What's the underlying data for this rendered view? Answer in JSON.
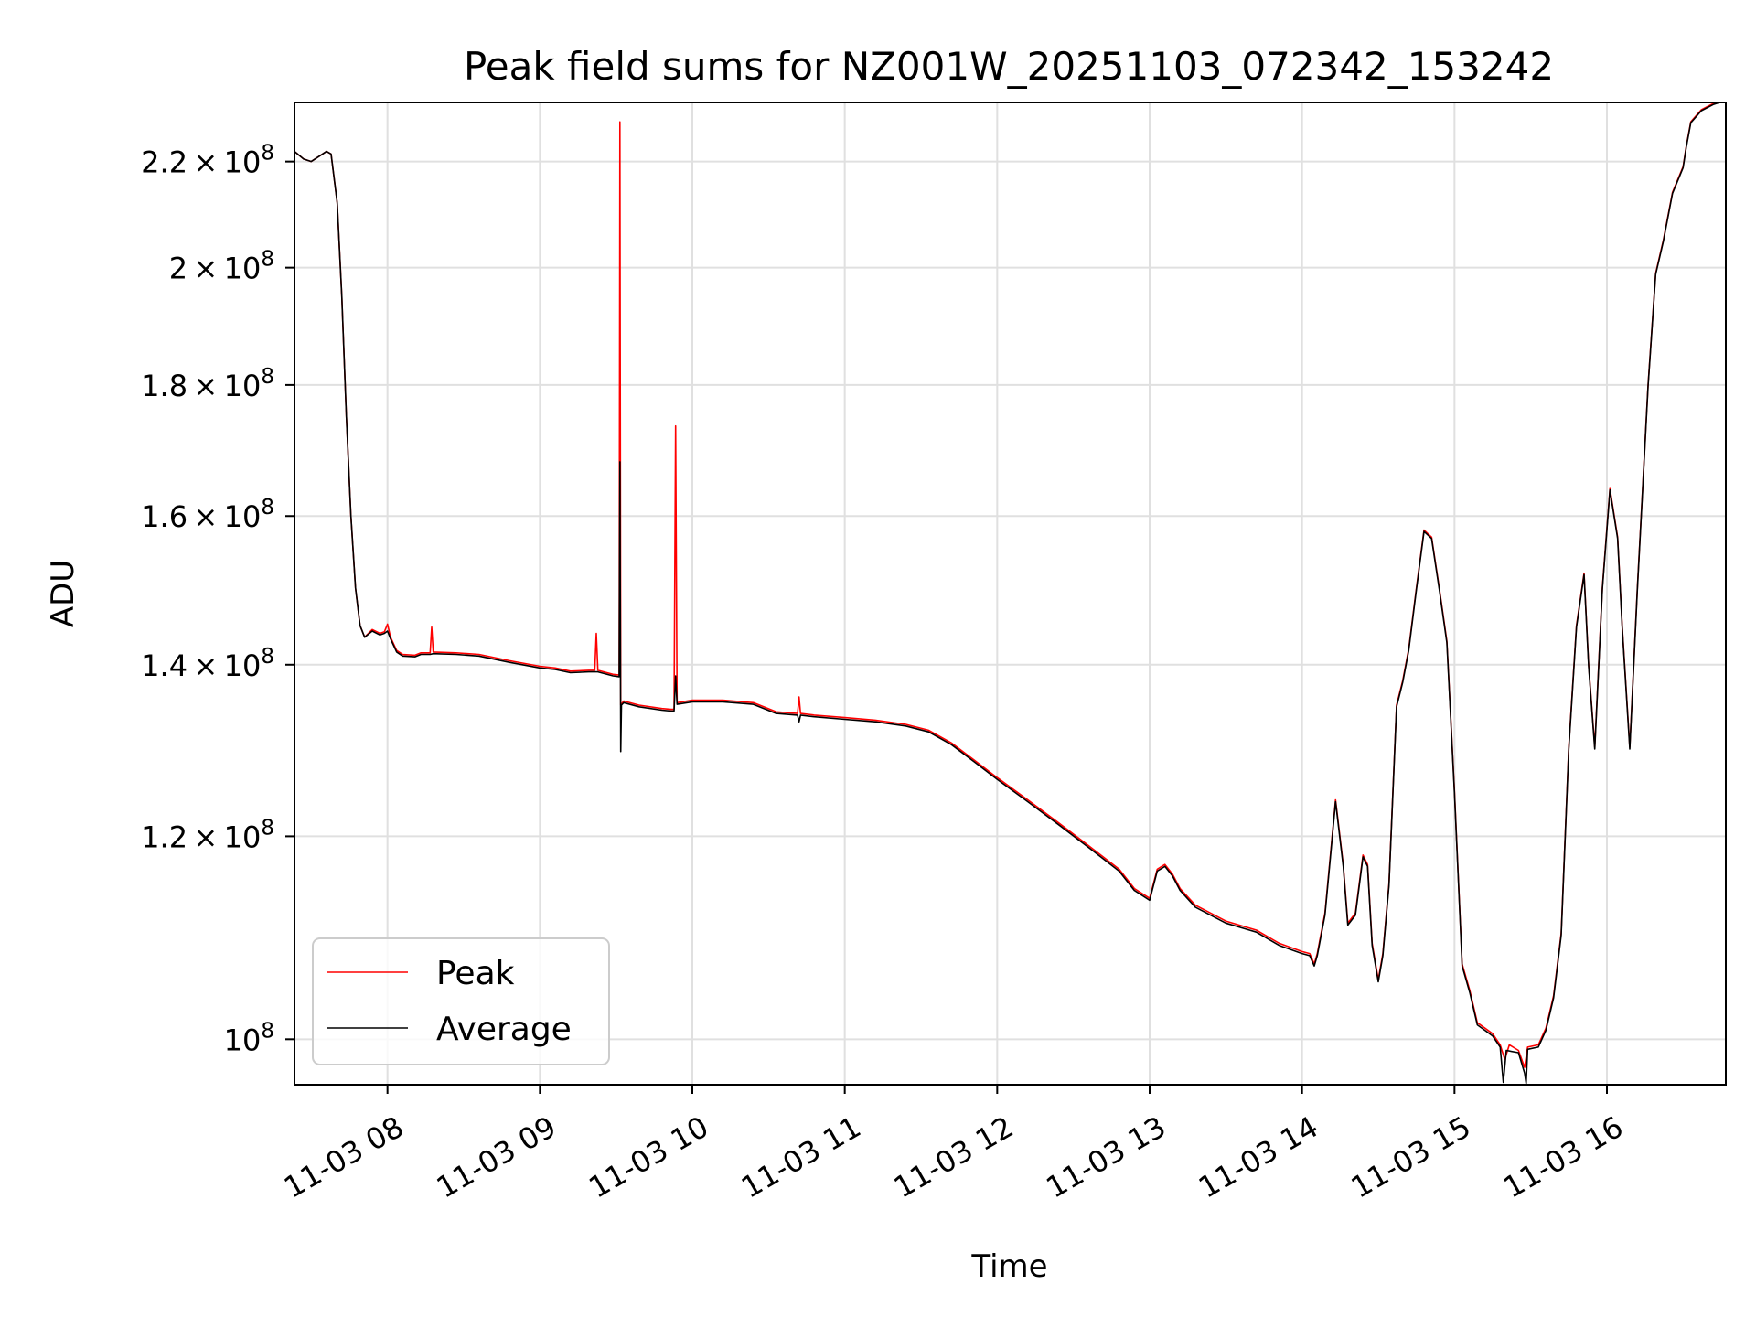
{
  "chart_data": {
    "type": "line",
    "title": "Peak field sums for NZ001W_20251103_072342_153242",
    "xlabel": "Time",
    "ylabel": "ADU",
    "yscale": "log",
    "xlim_hours": [
      7.39,
      16.78
    ],
    "ylim": [
      96000000,
      232000000
    ],
    "grid": true,
    "legend_location": "lower-left",
    "x_ticks": [
      {
        "value": 8,
        "label": "11-03 08"
      },
      {
        "value": 9,
        "label": "11-03 09"
      },
      {
        "value": 10,
        "label": "11-03 10"
      },
      {
        "value": 11,
        "label": "11-03 11"
      },
      {
        "value": 12,
        "label": "11-03 12"
      },
      {
        "value": 13,
        "label": "11-03 13"
      },
      {
        "value": 14,
        "label": "11-03 14"
      },
      {
        "value": 15,
        "label": "11-03 15"
      },
      {
        "value": 16,
        "label": "11-03 16"
      }
    ],
    "y_ticks": [
      {
        "value": 100000000,
        "mantissa": "",
        "exponent": "8"
      },
      {
        "value": 120000000,
        "mantissa": "1.2",
        "exponent": "8"
      },
      {
        "value": 140000000,
        "mantissa": "1.4",
        "exponent": "8"
      },
      {
        "value": 160000000,
        "mantissa": "1.6",
        "exponent": "8"
      },
      {
        "value": 180000000,
        "mantissa": "1.8",
        "exponent": "8"
      },
      {
        "value": 200000000,
        "mantissa": "2",
        "exponent": "8"
      },
      {
        "value": 220000000,
        "mantissa": "2.2",
        "exponent": "8"
      }
    ],
    "series": [
      {
        "name": "Peak",
        "color": "#ff0000",
        "points": [
          [
            7.39,
            222000000
          ],
          [
            7.45,
            220500000
          ],
          [
            7.5,
            220000000
          ],
          [
            7.55,
            221000000
          ],
          [
            7.6,
            222000000
          ],
          [
            7.63,
            221500000
          ],
          [
            7.67,
            212000000
          ],
          [
            7.7,
            195000000
          ],
          [
            7.73,
            175000000
          ],
          [
            7.76,
            160000000
          ],
          [
            7.79,
            150000000
          ],
          [
            7.82,
            145000000
          ],
          [
            7.85,
            143500000
          ],
          [
            7.9,
            144500000
          ],
          [
            7.95,
            144000000
          ],
          [
            7.98,
            144200000
          ],
          [
            8.0,
            145200000
          ],
          [
            8.02,
            143500000
          ],
          [
            8.06,
            141800000
          ],
          [
            8.1,
            141300000
          ],
          [
            8.18,
            141200000
          ],
          [
            8.22,
            141500000
          ],
          [
            8.28,
            141500000
          ],
          [
            8.29,
            144800000
          ],
          [
            8.3,
            141600000
          ],
          [
            8.45,
            141500000
          ],
          [
            8.6,
            141300000
          ],
          [
            8.8,
            140500000
          ],
          [
            9.0,
            139800000
          ],
          [
            9.1,
            139600000
          ],
          [
            9.2,
            139200000
          ],
          [
            9.32,
            139300000
          ],
          [
            9.36,
            139300000
          ],
          [
            9.37,
            144000000
          ],
          [
            9.38,
            139300000
          ],
          [
            9.48,
            138800000
          ],
          [
            9.52,
            138700000
          ],
          [
            9.525,
            228000000
          ],
          [
            9.53,
            135000000
          ],
          [
            9.55,
            135500000
          ],
          [
            9.65,
            135000000
          ],
          [
            9.8,
            134600000
          ],
          [
            9.86,
            134500000
          ],
          [
            9.88,
            134500000
          ],
          [
            9.89,
            173500000
          ],
          [
            9.9,
            135300000
          ],
          [
            10.0,
            135600000
          ],
          [
            10.2,
            135600000
          ],
          [
            10.4,
            135300000
          ],
          [
            10.55,
            134200000
          ],
          [
            10.69,
            134000000
          ],
          [
            10.7,
            136000000
          ],
          [
            10.71,
            134000000
          ],
          [
            10.8,
            133800000
          ],
          [
            11.0,
            133500000
          ],
          [
            11.2,
            133200000
          ],
          [
            11.4,
            132700000
          ],
          [
            11.55,
            132000000
          ],
          [
            11.7,
            130500000
          ],
          [
            11.85,
            128500000
          ],
          [
            12.0,
            126500000
          ],
          [
            12.2,
            124000000
          ],
          [
            12.4,
            121500000
          ],
          [
            12.6,
            119000000
          ],
          [
            12.8,
            116500000
          ],
          [
            12.9,
            114500000
          ],
          [
            13.0,
            113500000
          ],
          [
            13.05,
            116500000
          ],
          [
            13.1,
            117000000
          ],
          [
            13.15,
            116000000
          ],
          [
            13.2,
            114500000
          ],
          [
            13.3,
            112800000
          ],
          [
            13.5,
            111200000
          ],
          [
            13.7,
            110300000
          ],
          [
            13.85,
            109000000
          ],
          [
            14.0,
            108200000
          ],
          [
            14.05,
            108000000
          ],
          [
            14.08,
            107000000
          ],
          [
            14.1,
            108000000
          ],
          [
            14.15,
            112000000
          ],
          [
            14.18,
            117000000
          ],
          [
            14.22,
            124000000
          ],
          [
            14.27,
            117000000
          ],
          [
            14.3,
            111000000
          ],
          [
            14.35,
            112000000
          ],
          [
            14.4,
            118000000
          ],
          [
            14.43,
            117000000
          ],
          [
            14.46,
            109000000
          ],
          [
            14.5,
            105500000
          ],
          [
            14.53,
            108000000
          ],
          [
            14.57,
            115000000
          ],
          [
            14.62,
            135000000
          ],
          [
            14.66,
            138000000
          ],
          [
            14.7,
            142000000
          ],
          [
            14.75,
            150000000
          ],
          [
            14.8,
            158000000
          ],
          [
            14.85,
            157000000
          ],
          [
            14.9,
            150000000
          ],
          [
            14.95,
            143000000
          ],
          [
            15.0,
            125000000
          ],
          [
            15.05,
            107000000
          ],
          [
            15.1,
            104500000
          ],
          [
            15.15,
            101500000
          ],
          [
            15.2,
            101000000
          ],
          [
            15.25,
            100500000
          ],
          [
            15.3,
            99500000
          ],
          [
            15.33,
            98200000
          ],
          [
            15.36,
            99500000
          ],
          [
            15.42,
            99000000
          ],
          [
            15.46,
            97500000
          ],
          [
            15.48,
            99300000
          ],
          [
            15.55,
            99500000
          ],
          [
            15.6,
            101000000
          ],
          [
            15.65,
            104000000
          ],
          [
            15.7,
            110000000
          ],
          [
            15.75,
            130000000
          ],
          [
            15.8,
            145000000
          ],
          [
            15.85,
            152000000
          ],
          [
            15.88,
            140000000
          ],
          [
            15.92,
            130000000
          ],
          [
            15.97,
            150000000
          ],
          [
            16.02,
            164000000
          ],
          [
            16.07,
            157000000
          ],
          [
            16.1,
            145000000
          ],
          [
            16.15,
            130000000
          ],
          [
            16.2,
            150000000
          ],
          [
            16.27,
            180000000
          ],
          [
            16.32,
            199000000
          ],
          [
            16.37,
            205000000
          ],
          [
            16.43,
            214000000
          ],
          [
            16.5,
            219000000
          ],
          [
            16.52,
            223000000
          ],
          [
            16.55,
            228000000
          ],
          [
            16.62,
            230500000
          ],
          [
            16.7,
            231800000
          ],
          [
            16.78,
            232500000
          ]
        ]
      },
      {
        "name": "Average",
        "color": "#000000",
        "points": [
          [
            7.39,
            222000000
          ],
          [
            7.45,
            220500000
          ],
          [
            7.5,
            220000000
          ],
          [
            7.55,
            221000000
          ],
          [
            7.6,
            222000000
          ],
          [
            7.63,
            221500000
          ],
          [
            7.67,
            212000000
          ],
          [
            7.7,
            195000000
          ],
          [
            7.73,
            175000000
          ],
          [
            7.76,
            160000000
          ],
          [
            7.79,
            150000000
          ],
          [
            7.82,
            145000000
          ],
          [
            7.85,
            143500000
          ],
          [
            7.9,
            144300000
          ],
          [
            7.95,
            143800000
          ],
          [
            7.98,
            144000000
          ],
          [
            8.0,
            144300000
          ],
          [
            8.02,
            143300000
          ],
          [
            8.06,
            141600000
          ],
          [
            8.1,
            141100000
          ],
          [
            8.18,
            141000000
          ],
          [
            8.22,
            141300000
          ],
          [
            8.28,
            141300000
          ],
          [
            8.3,
            141400000
          ],
          [
            8.45,
            141300000
          ],
          [
            8.6,
            141100000
          ],
          [
            8.8,
            140300000
          ],
          [
            9.0,
            139600000
          ],
          [
            9.1,
            139400000
          ],
          [
            9.2,
            139000000
          ],
          [
            9.32,
            139100000
          ],
          [
            9.38,
            139100000
          ],
          [
            9.48,
            138600000
          ],
          [
            9.52,
            138500000
          ],
          [
            9.525,
            168000000
          ],
          [
            9.53,
            129500000
          ],
          [
            9.535,
            135000000
          ],
          [
            9.55,
            135300000
          ],
          [
            9.65,
            134800000
          ],
          [
            9.8,
            134400000
          ],
          [
            9.86,
            134300000
          ],
          [
            9.88,
            134300000
          ],
          [
            9.89,
            138600000
          ],
          [
            9.9,
            135100000
          ],
          [
            10.0,
            135400000
          ],
          [
            10.2,
            135400000
          ],
          [
            10.4,
            135100000
          ],
          [
            10.55,
            134000000
          ],
          [
            10.69,
            133800000
          ],
          [
            10.7,
            133000000
          ],
          [
            10.71,
            133800000
          ],
          [
            10.8,
            133600000
          ],
          [
            11.0,
            133300000
          ],
          [
            11.2,
            133000000
          ],
          [
            11.4,
            132500000
          ],
          [
            11.55,
            131800000
          ],
          [
            11.7,
            130300000
          ],
          [
            11.85,
            128300000
          ],
          [
            12.0,
            126300000
          ],
          [
            12.2,
            123800000
          ],
          [
            12.4,
            121300000
          ],
          [
            12.6,
            118800000
          ],
          [
            12.8,
            116300000
          ],
          [
            12.9,
            114300000
          ],
          [
            13.0,
            113300000
          ],
          [
            13.05,
            116300000
          ],
          [
            13.1,
            116800000
          ],
          [
            13.15,
            115800000
          ],
          [
            13.2,
            114300000
          ],
          [
            13.3,
            112600000
          ],
          [
            13.5,
            111000000
          ],
          [
            13.7,
            110100000
          ],
          [
            13.85,
            108800000
          ],
          [
            14.0,
            108000000
          ],
          [
            14.05,
            107800000
          ],
          [
            14.08,
            106800000
          ],
          [
            14.1,
            107800000
          ],
          [
            14.15,
            111800000
          ],
          [
            14.18,
            116800000
          ],
          [
            14.22,
            123800000
          ],
          [
            14.27,
            116800000
          ],
          [
            14.3,
            110800000
          ],
          [
            14.35,
            111800000
          ],
          [
            14.4,
            117800000
          ],
          [
            14.43,
            116800000
          ],
          [
            14.46,
            108800000
          ],
          [
            14.5,
            105300000
          ],
          [
            14.53,
            107800000
          ],
          [
            14.57,
            114800000
          ],
          [
            14.62,
            134800000
          ],
          [
            14.66,
            137800000
          ],
          [
            14.7,
            141800000
          ],
          [
            14.75,
            149800000
          ],
          [
            14.8,
            157800000
          ],
          [
            14.85,
            156800000
          ],
          [
            14.9,
            149800000
          ],
          [
            14.95,
            142800000
          ],
          [
            15.0,
            124800000
          ],
          [
            15.05,
            106800000
          ],
          [
            15.1,
            104300000
          ],
          [
            15.15,
            101300000
          ],
          [
            15.2,
            100800000
          ],
          [
            15.25,
            100300000
          ],
          [
            15.3,
            99300000
          ],
          [
            15.32,
            96200000
          ],
          [
            15.34,
            99000000
          ],
          [
            15.42,
            98800000
          ],
          [
            15.46,
            97000000
          ],
          [
            15.47,
            96100000
          ],
          [
            15.48,
            99100000
          ],
          [
            15.55,
            99300000
          ],
          [
            15.6,
            100800000
          ],
          [
            15.65,
            103800000
          ],
          [
            15.7,
            109800000
          ],
          [
            15.75,
            129800000
          ],
          [
            15.8,
            144800000
          ],
          [
            15.85,
            151800000
          ],
          [
            15.88,
            139800000
          ],
          [
            15.92,
            129800000
          ],
          [
            15.97,
            149800000
          ],
          [
            16.02,
            163800000
          ],
          [
            16.07,
            156800000
          ],
          [
            16.1,
            144800000
          ],
          [
            16.15,
            129800000
          ],
          [
            16.2,
            149800000
          ],
          [
            16.27,
            179800000
          ],
          [
            16.32,
            198800000
          ],
          [
            16.37,
            204800000
          ],
          [
            16.43,
            213800000
          ],
          [
            16.5,
            218800000
          ],
          [
            16.52,
            222800000
          ],
          [
            16.55,
            227800000
          ],
          [
            16.62,
            230300000
          ],
          [
            16.7,
            231600000
          ],
          [
            16.78,
            232400000
          ]
        ]
      }
    ]
  }
}
